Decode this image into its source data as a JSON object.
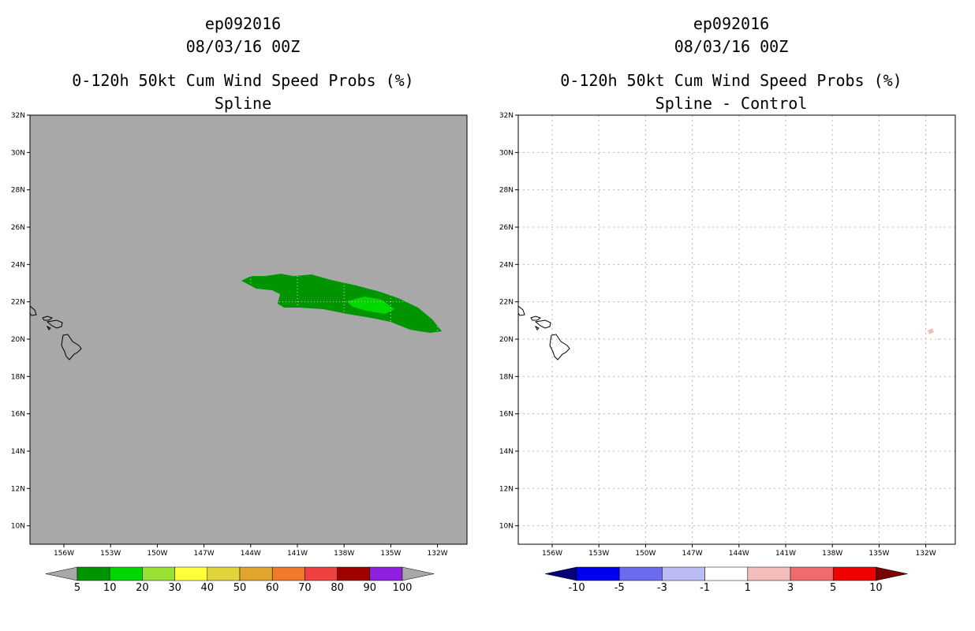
{
  "left_panel": {
    "title_line1": "ep092016",
    "title_line2": "08/03/16 00Z",
    "title_line3": "0-120h 50kt Cum Wind Speed Probs (%)",
    "title_line4": "Spline",
    "background_color": "#a8a8a8",
    "lat_labels": [
      "32N",
      "30N",
      "28N",
      "26N",
      "24N",
      "22N",
      "20N",
      "18N",
      "16N",
      "14N",
      "12N",
      "10N"
    ],
    "lon_labels": [
      "156W",
      "153W",
      "150W",
      "147W",
      "144W",
      "141W",
      "138W",
      "135W",
      "132W"
    ],
    "colorbar": {
      "labels": [
        "5",
        "10",
        "20",
        "30",
        "40",
        "50",
        "60",
        "70",
        "80",
        "90",
        "100"
      ],
      "colors": [
        "#009500",
        "#00d800",
        "#99e033",
        "#ffff3a",
        "#e0d43a",
        "#e0a52a",
        "#f0792a",
        "#f0403f",
        "#a00000",
        "#9020e0"
      ],
      "end_colors": [
        "#a8a8a8",
        "#a8a8a8"
      ]
    },
    "contour_colors": [
      "#009500",
      "#00d800"
    ]
  },
  "right_panel": {
    "title_line1": "ep092016",
    "title_line2": "08/03/16 00Z",
    "title_line3": "0-120h 50kt Cum Wind Speed Probs (%)",
    "title_line4": "Spline - Control",
    "background_color": "#ffffff",
    "lat_labels": [
      "32N",
      "30N",
      "28N",
      "26N",
      "24N",
      "22N",
      "20N",
      "18N",
      "16N",
      "14N",
      "12N",
      "10N"
    ],
    "lon_labels": [
      "156W",
      "153W",
      "150W",
      "147W",
      "144W",
      "141W",
      "138W",
      "135W",
      "132W"
    ],
    "colorbar": {
      "labels": [
        "-10",
        "-5",
        "-3",
        "-1",
        "1",
        "3",
        "5",
        "10"
      ],
      "colors": [
        "#0000f0",
        "#6b6bf0",
        "#bcbcf5",
        "#ffffff",
        "#f5bcbc",
        "#f06b6b",
        "#f00000"
      ],
      "end_colors": [
        "#00007a",
        "#7a0000"
      ]
    },
    "anomaly_color": "#f5bcbc"
  }
}
